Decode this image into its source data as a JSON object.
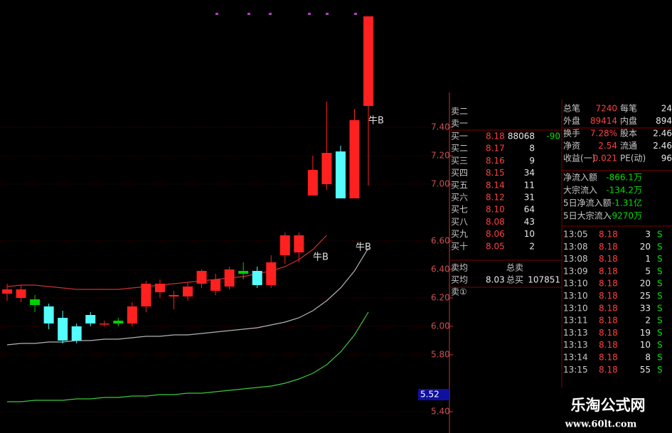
{
  "chart_data": {
    "type": "candlestick",
    "categories": [
      null,
      null,
      null,
      null,
      null,
      null,
      null,
      null,
      null,
      null,
      null,
      null,
      null,
      null,
      null,
      null,
      null,
      null,
      null,
      null,
      null,
      null,
      null,
      null,
      null,
      null,
      null
    ],
    "open": [
      6.23,
      6.26,
      6.19,
      6.14,
      6.06,
      6.0,
      6.08,
      6.02,
      6.04,
      6.02,
      6.14,
      6.24,
      6.22,
      6.21,
      6.3,
      6.25,
      6.28,
      6.37,
      6.39,
      6.29,
      6.5,
      6.52,
      6.92,
      7.0,
      7.23,
      6.9,
      7.55
    ],
    "high": [
      6.3,
      6.29,
      6.22,
      6.16,
      6.11,
      6.02,
      6.1,
      6.04,
      6.06,
      6.17,
      6.32,
      6.33,
      6.25,
      6.31,
      6.4,
      6.37,
      6.42,
      6.45,
      6.42,
      6.5,
      6.66,
      6.66,
      7.2,
      7.58,
      7.27,
      7.53,
      8.18
    ],
    "low": [
      6.18,
      6.17,
      6.1,
      5.98,
      5.88,
      5.88,
      6.0,
      6.0,
      6.0,
      6.0,
      6.1,
      6.2,
      6.12,
      6.18,
      6.27,
      6.22,
      6.26,
      6.33,
      6.27,
      6.27,
      6.44,
      6.45,
      6.92,
      6.96,
      6.9,
      6.9,
      6.99
    ],
    "close": [
      6.26,
      6.2,
      6.15,
      6.02,
      5.9,
      5.9,
      6.02,
      6.02,
      6.02,
      6.14,
      6.3,
      6.3,
      6.21,
      6.28,
      6.39,
      6.33,
      6.4,
      6.39,
      6.29,
      6.45,
      6.64,
      6.64,
      7.1,
      7.22,
      6.9,
      7.45,
      8.18
    ],
    "candle_colors": [
      "#ff2020",
      "#ff2020",
      "#00d000",
      "#54fcfc",
      "#54fcfc",
      "#54fcfc",
      "#54fcfc",
      "#ff2020",
      "#00d000",
      "#ff2020",
      "#ff2020",
      "#ff2020",
      "#ff2020",
      "#ff2020",
      "#ff2020",
      "#ff2020",
      "#ff2020",
      "#00d000",
      "#54fcfc",
      "#ff2020",
      "#ff2020",
      "#ff2020",
      "#ff2020",
      "#ff2020",
      "#54fcfc",
      "#ff2020",
      "#ff2020"
    ],
    "moving_averages": [
      {
        "color": "#c83232",
        "values": [
          6.28,
          6.29,
          6.29,
          6.28,
          6.27,
          6.26,
          6.26,
          6.26,
          6.26,
          6.27,
          6.28,
          6.29,
          6.3,
          6.31,
          6.32,
          6.33,
          6.34,
          6.35,
          6.37,
          6.39,
          6.42,
          6.47,
          6.54,
          6.64,
          null,
          null,
          null
        ]
      },
      {
        "color": "#b4b4b4",
        "values": [
          5.87,
          5.88,
          5.88,
          5.89,
          5.89,
          5.9,
          5.9,
          5.91,
          5.91,
          5.92,
          5.93,
          5.93,
          5.94,
          5.94,
          5.95,
          5.96,
          5.97,
          5.98,
          5.99,
          6.01,
          6.03,
          6.06,
          6.11,
          6.18,
          6.27,
          6.39,
          6.55
        ]
      },
      {
        "color": "#3cc83c",
        "values": [
          5.47,
          5.47,
          5.48,
          5.48,
          5.48,
          5.49,
          5.49,
          5.5,
          5.5,
          5.51,
          5.51,
          5.52,
          5.52,
          5.53,
          5.53,
          5.54,
          5.55,
          5.56,
          5.57,
          5.58,
          5.6,
          5.63,
          5.67,
          5.73,
          5.82,
          5.94,
          6.1
        ]
      }
    ],
    "ylim": [
      5.345,
      8.195
    ],
    "yticks": [
      {
        "value": 7.4,
        "label": "7.40"
      },
      {
        "value": 7.2,
        "label": "7.20"
      },
      {
        "value": 7.0,
        "label": "7.00"
      },
      {
        "value": 6.6,
        "label": "6.60"
      },
      {
        "value": 6.4,
        "label": "6.40"
      },
      {
        "value": 6.2,
        "label": "6.20"
      },
      {
        "value": 6.0,
        "label": "6.00"
      },
      {
        "value": 5.8,
        "label": "5.80"
      },
      {
        "value": 5.4,
        "label": "5.40"
      }
    ],
    "grid": true,
    "price_marker": {
      "value": 5.52,
      "label": "5.52"
    },
    "annotations": [
      "牛B",
      "牛B",
      "牛B"
    ]
  },
  "order_book": {
    "sell_rows": [
      "卖二",
      "卖一"
    ],
    "buy_rows": [
      [
        "买一",
        "8.18",
        "88068",
        "-90"
      ],
      [
        "买二",
        "8.17",
        "8"
      ],
      [
        "买三",
        "8.16",
        "9"
      ],
      [
        "买四",
        "8.15",
        "34"
      ],
      [
        "买五",
        "8.14",
        "11"
      ],
      [
        "买六",
        "8.12",
        "31"
      ],
      [
        "买七",
        "8.10",
        "64"
      ],
      [
        "买八",
        "8.08",
        "43"
      ],
      [
        "买九",
        "8.06",
        "10"
      ],
      [
        "买十",
        "8.05",
        "2"
      ]
    ],
    "summary": [
      [
        "卖均",
        "总卖"
      ],
      [
        "买均",
        "8.03",
        "总买",
        "107851"
      ],
      [
        "卖①"
      ]
    ]
  },
  "stats": {
    "rows": [
      [
        "总笔",
        "7240",
        "每笔",
        "24"
      ],
      [
        "外盘",
        "89414",
        "内盘",
        "894"
      ],
      [
        "换手",
        "7.28%",
        "股本",
        "2.46"
      ],
      [
        "净资",
        "2.54",
        "流通",
        "2.46"
      ],
      [
        "收益(一)",
        "0.021",
        "PE(动)",
        "96"
      ]
    ],
    "flows": [
      [
        "净流入额",
        "-866.1万"
      ],
      [
        "大宗流入",
        "-134.2万"
      ],
      [
        "5日净流入额",
        "-1.31亿"
      ],
      [
        "5日大宗流入",
        "-9270万"
      ]
    ],
    "trades": [
      [
        "13:05",
        "8.18",
        "3",
        "S"
      ],
      [
        "13:08",
        "8.18",
        "20",
        "S"
      ],
      [
        "13:08",
        "8.18",
        "1",
        "S"
      ],
      [
        "13:09",
        "8.18",
        "5",
        "S"
      ],
      [
        "13:10",
        "8.18",
        "20",
        "S"
      ],
      [
        "13:10",
        "8.18",
        "25",
        "S"
      ],
      [
        "13:10",
        "8.18",
        "33",
        "S"
      ],
      [
        "13:11",
        "8.18",
        "2",
        "S"
      ],
      [
        "13:13",
        "8.18",
        "19",
        "S"
      ],
      [
        "13:13",
        "8.18",
        "10",
        "S"
      ],
      [
        "13:14",
        "8.18",
        "8",
        "S"
      ],
      [
        "13:15",
        "8.18",
        "55",
        "S"
      ]
    ]
  },
  "watermark": {
    "title": "乐淘公式网",
    "url": "www.60lt.com"
  }
}
